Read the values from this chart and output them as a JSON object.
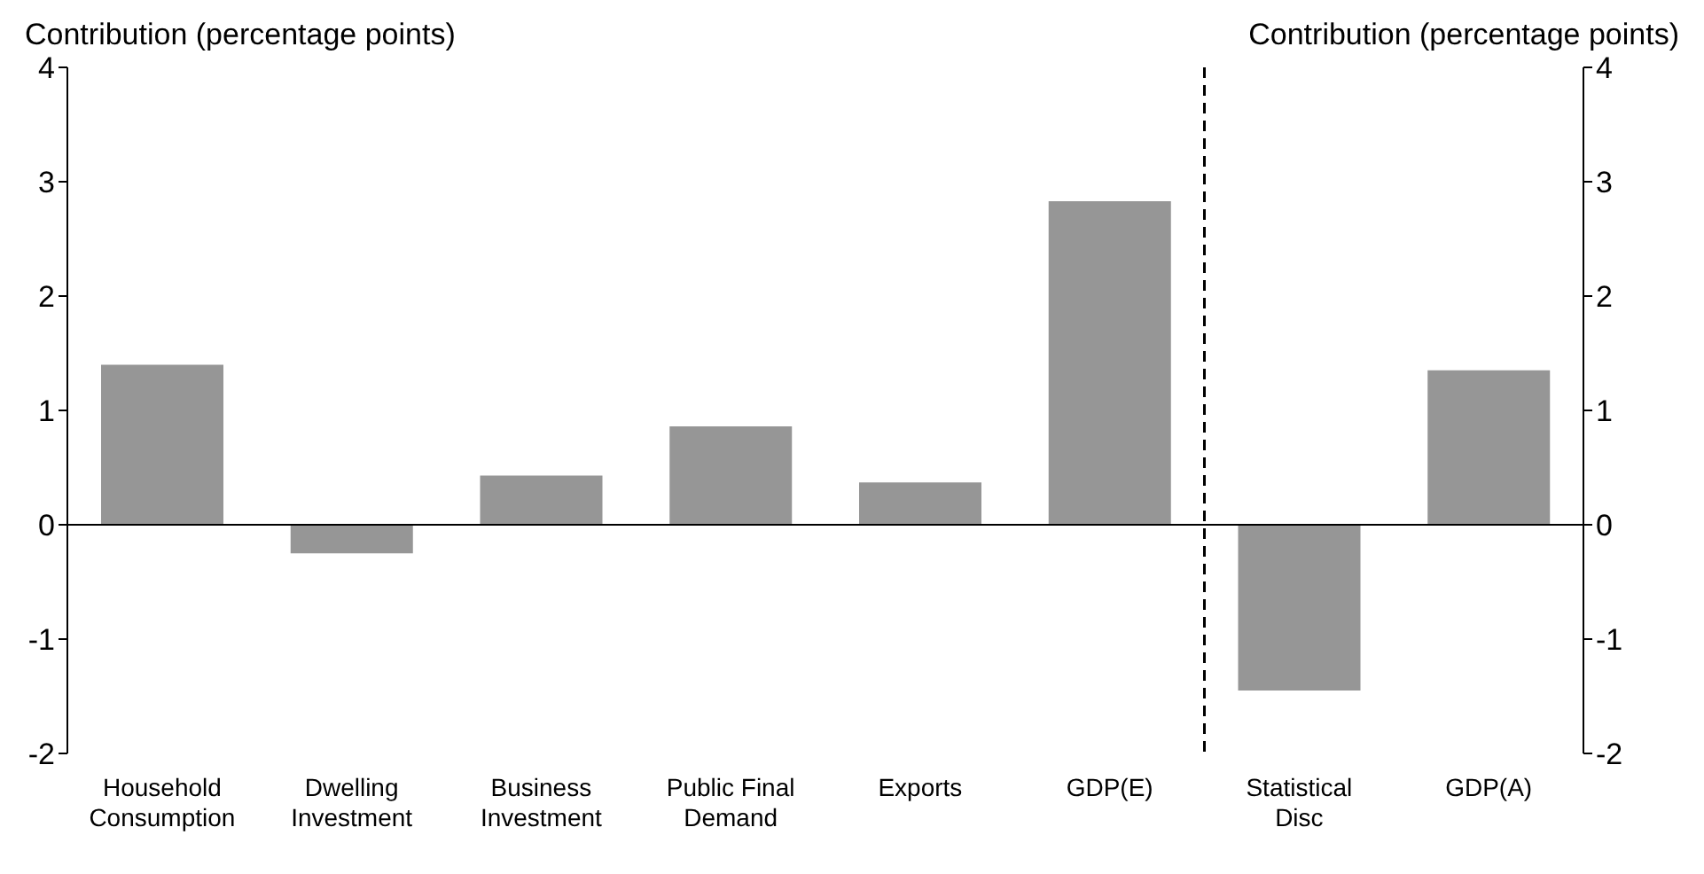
{
  "chart_data": {
    "type": "bar",
    "categories": [
      "Household Consumption",
      "Dwelling Investment",
      "Business Investment",
      "Public Final Demand",
      "Exports",
      "GDP(E)",
      "Statistical Disc",
      "GDP(A)"
    ],
    "values": [
      1.4,
      -0.25,
      0.43,
      0.86,
      0.37,
      2.83,
      -1.45,
      1.35
    ],
    "color": "#969696",
    "ylabel": "Contribution (percentage points)",
    "y2label": "Contribution (percentage points)",
    "ylim": [
      -2,
      4
    ],
    "yticks": [
      -2,
      -1,
      0,
      1,
      2,
      3,
      4
    ],
    "y2lim": [
      -2,
      4
    ],
    "y2ticks": [
      -2,
      -1,
      0,
      1,
      2,
      3,
      4
    ],
    "legend": false
  }
}
